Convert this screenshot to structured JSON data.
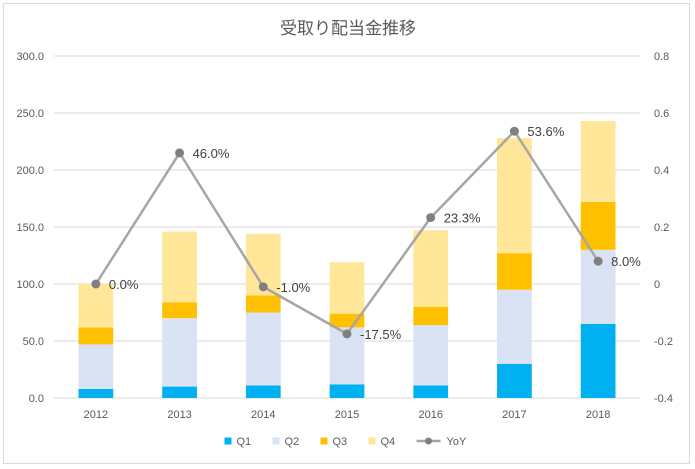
{
  "chart_data": {
    "type": "bar",
    "stacked": true,
    "title": "受取り配当金推移",
    "categories": [
      "2012",
      "2013",
      "2014",
      "2015",
      "2016",
      "2017",
      "2018"
    ],
    "series": [
      {
        "name": "Q1",
        "type": "bar",
        "axis": "left",
        "color": "#00b0f0",
        "values": [
          8,
          10,
          11,
          12,
          11,
          30,
          65
        ]
      },
      {
        "name": "Q2",
        "type": "bar",
        "axis": "left",
        "color": "#dae3f3",
        "values": [
          39,
          60,
          64,
          50,
          53,
          65,
          65
        ]
      },
      {
        "name": "Q3",
        "type": "bar",
        "axis": "left",
        "color": "#ffc000",
        "values": [
          15,
          14,
          15,
          12,
          16,
          32,
          42
        ]
      },
      {
        "name": "Q4",
        "type": "bar",
        "axis": "left",
        "color": "#ffe699",
        "values": [
          38,
          62,
          54,
          45,
          67,
          101,
          71
        ]
      },
      {
        "name": "YoY",
        "type": "line",
        "axis": "right",
        "color": "#a6a6a6",
        "marker_color": "#808080",
        "values": [
          0.0,
          0.46,
          -0.01,
          -0.175,
          0.233,
          0.536,
          0.08
        ],
        "labels": [
          "0.0%",
          "46.0%",
          "-1.0%",
          "-17.5%",
          "23.3%",
          "53.6%",
          "8.0%"
        ]
      }
    ],
    "y_left": {
      "min": 0,
      "max": 300,
      "ticks": [
        "0.0",
        "50.0",
        "100.0",
        "150.0",
        "200.0",
        "250.0",
        "300.0"
      ]
    },
    "y_right": {
      "min": -0.4,
      "max": 0.8,
      "ticks": [
        "-0.4",
        "-0.2",
        "0",
        "0.2",
        "0.4",
        "0.6",
        "0.8"
      ]
    },
    "legend": {
      "position": "bottom",
      "items": [
        "Q1",
        "Q2",
        "Q3",
        "Q4",
        "YoY"
      ]
    },
    "grid": true
  }
}
